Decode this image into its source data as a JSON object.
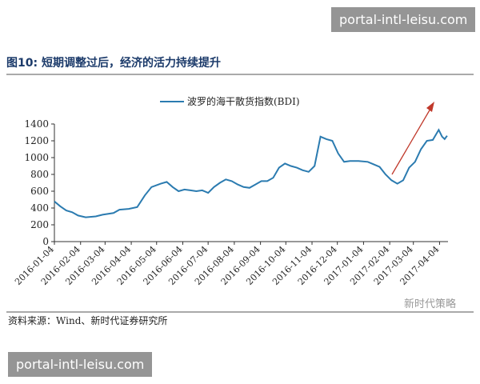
{
  "watermark_top": "portal-intl-leisu.com",
  "figure_title": "图10:  短期调整过后，经济的活力持续提升",
  "chart_data": {
    "type": "line",
    "legend": "波罗的海干散货指数(BDI)",
    "x": [
      "2016-01-04",
      "2016-01-11",
      "2016-01-18",
      "2016-01-25",
      "2016-02-01",
      "2016-02-10",
      "2016-02-22",
      "2016-03-01",
      "2016-03-14",
      "2016-03-21",
      "2016-04-01",
      "2016-04-11",
      "2016-04-20",
      "2016-04-28",
      "2016-05-09",
      "2016-05-16",
      "2016-05-23",
      "2016-05-30",
      "2016-06-06",
      "2016-06-13",
      "2016-06-20",
      "2016-06-27",
      "2016-07-04",
      "2016-07-11",
      "2016-07-18",
      "2016-07-25",
      "2016-08-01",
      "2016-08-08",
      "2016-08-15",
      "2016-08-22",
      "2016-08-29",
      "2016-09-05",
      "2016-09-12",
      "2016-09-19",
      "2016-09-26",
      "2016-10-03",
      "2016-10-10",
      "2016-10-17",
      "2016-10-24",
      "2016-10-31",
      "2016-11-07",
      "2016-11-14",
      "2016-11-21",
      "2016-11-28",
      "2016-12-05",
      "2016-12-12",
      "2016-12-19",
      "2016-12-29",
      "2017-01-09",
      "2017-01-16",
      "2017-01-23",
      "2017-01-30",
      "2017-02-06",
      "2017-02-13",
      "2017-02-20",
      "2017-02-27",
      "2017-03-06",
      "2017-03-13",
      "2017-03-20",
      "2017-03-27",
      "2017-04-03",
      "2017-04-07",
      "2017-04-10",
      "2017-04-13"
    ],
    "values": [
      478,
      420,
      370,
      350,
      310,
      290,
      300,
      320,
      340,
      380,
      390,
      410,
      550,
      650,
      690,
      710,
      650,
      600,
      620,
      610,
      600,
      610,
      580,
      650,
      700,
      740,
      720,
      680,
      650,
      640,
      680,
      720,
      720,
      760,
      880,
      930,
      900,
      880,
      850,
      830,
      900,
      1250,
      1220,
      1200,
      1050,
      950,
      960,
      960,
      950,
      920,
      890,
      800,
      730,
      690,
      730,
      880,
      950,
      1100,
      1200,
      1210,
      1330,
      1250,
      1220,
      1260
    ],
    "color": "#2b7bb0",
    "xlim": [
      "2016-01-04",
      "2017-04-14"
    ],
    "xticks": [
      "2016-01-04",
      "2016-02-04",
      "2016-03-04",
      "2016-04-04",
      "2016-05-04",
      "2016-06-04",
      "2016-07-04",
      "2016-08-04",
      "2016-09-04",
      "2016-10-04",
      "2016-11-04",
      "2016-12-04",
      "2017-01-04",
      "2017-02-04",
      "2017-03-04",
      "2017-04-04"
    ],
    "ylim": [
      0,
      1400
    ],
    "yticks": [
      0,
      200,
      400,
      600,
      800,
      1000,
      1200,
      1400
    ]
  },
  "source": "资料来源：Wind、新时代证券研究所",
  "logo": "新时代策略",
  "watermark_bottom": "portal-intl-leisu.com"
}
